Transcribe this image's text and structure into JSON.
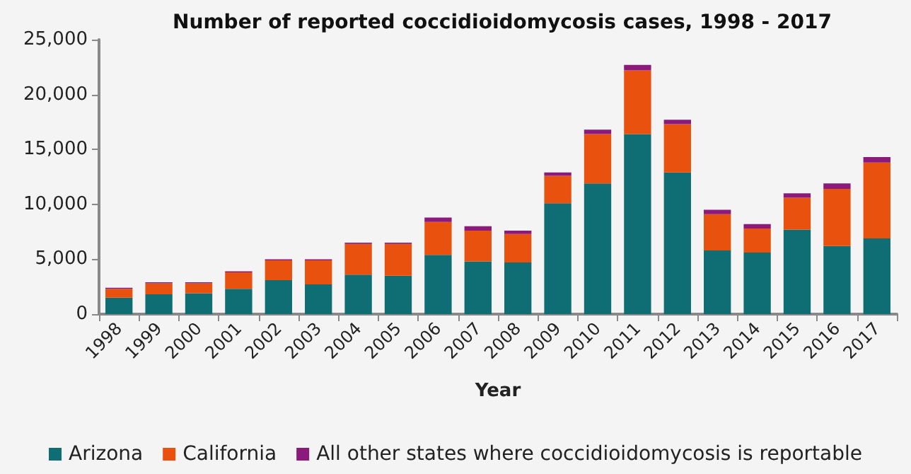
{
  "chart_data": {
    "type": "bar",
    "title": "Number of reported coccidioidomycosis cases, 1998 - 2017",
    "xlabel": "Year",
    "categories": [
      "1998",
      "1999",
      "2000",
      "2001",
      "2002",
      "2003",
      "2004",
      "2005",
      "2006",
      "2007",
      "2008",
      "2009",
      "2010",
      "2011",
      "2012",
      "2013",
      "2014",
      "2015",
      "2016",
      "2017"
    ],
    "series": [
      {
        "name": "Arizona",
        "color": "#0f6e74",
        "values": [
          1500,
          1800,
          1900,
          2300,
          3100,
          2700,
          3600,
          3500,
          5400,
          4800,
          4700,
          10100,
          11900,
          16400,
          12900,
          5800,
          5600,
          7700,
          6200,
          6900
        ]
      },
      {
        "name": "California",
        "color": "#e8520e",
        "values": [
          800,
          1000,
          900,
          1500,
          1800,
          2200,
          2800,
          2900,
          3000,
          2800,
          2600,
          2500,
          4500,
          5800,
          4400,
          3300,
          2200,
          2900,
          5200,
          6900
        ]
      },
      {
        "name": "All other states where coccidioidomycosis is reportable",
        "color": "#8b1a7a",
        "values": [
          100,
          100,
          100,
          100,
          100,
          100,
          100,
          100,
          400,
          400,
          300,
          300,
          400,
          500,
          400,
          400,
          400,
          400,
          500,
          500
        ]
      }
    ],
    "stacked": true,
    "ylim": [
      0,
      25000
    ],
    "yticks": [
      0,
      {
        "value": 5000,
        "label": "5,000"
      },
      {
        "value": 10000,
        "label": "10,000"
      },
      {
        "value": 15000,
        "label": "15,000"
      },
      {
        "value": 20000,
        "label": "20,000"
      },
      {
        "value": 25000,
        "label": "25,000"
      }
    ],
    "grid": false,
    "legend": "bottom"
  }
}
